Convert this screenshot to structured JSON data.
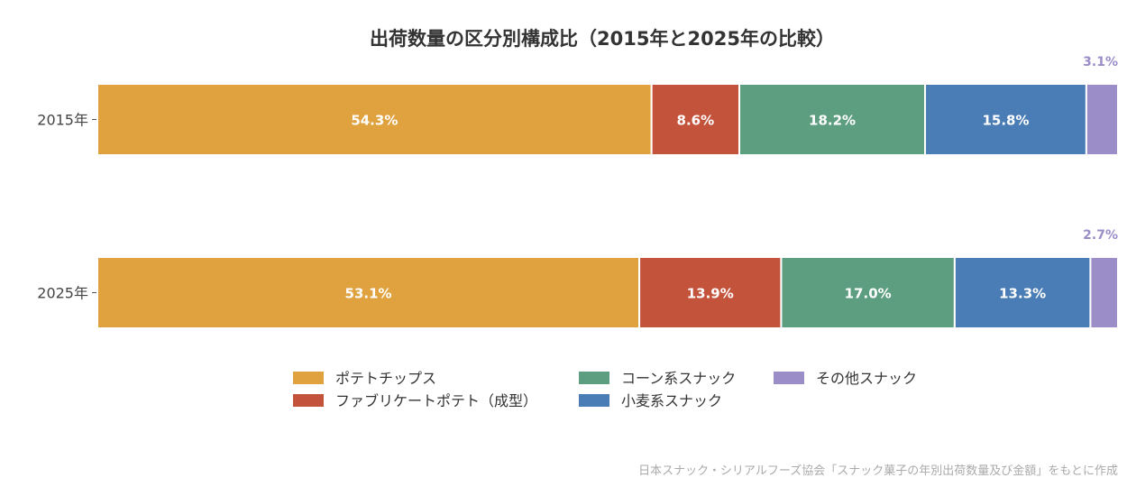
{
  "chart_data": {
    "type": "bar",
    "orientation": "horizontal",
    "stacked": true,
    "title": "出荷数量の区分別構成比（2015年と2025年の比較）",
    "categories": [
      "2015年",
      "2025年"
    ],
    "series": [
      {
        "name": "ポテトチップス",
        "values": [
          54.3,
          53.1
        ],
        "labels": [
          "54.3%",
          "53.1%"
        ],
        "color": "#e0a23e"
      },
      {
        "name": "ファブリケートポテト（成型）",
        "values": [
          8.6,
          13.9
        ],
        "labels": [
          "8.6%",
          "13.9%"
        ],
        "color": "#c4533c"
      },
      {
        "name": "コーン系スナック",
        "values": [
          18.2,
          17.0
        ],
        "labels": [
          "18.2%",
          "17.0%"
        ],
        "color": "#5e9e80"
      },
      {
        "name": "小麦系スナック",
        "values": [
          15.8,
          13.3
        ],
        "labels": [
          "15.8%",
          "13.3%"
        ],
        "color": "#4a7db5"
      },
      {
        "name": "その他スナック",
        "values": [
          3.1,
          2.7
        ],
        "labels": [
          "3.1%",
          "2.7%"
        ],
        "color": "#9b8ec8"
      }
    ],
    "xlim": [
      0,
      100
    ],
    "grid": false,
    "legend_position": "bottom",
    "source": "日本スナック・シリアルフーズ協会「スナック菓子の年別出荷数量及び金額」をもとに作成"
  }
}
